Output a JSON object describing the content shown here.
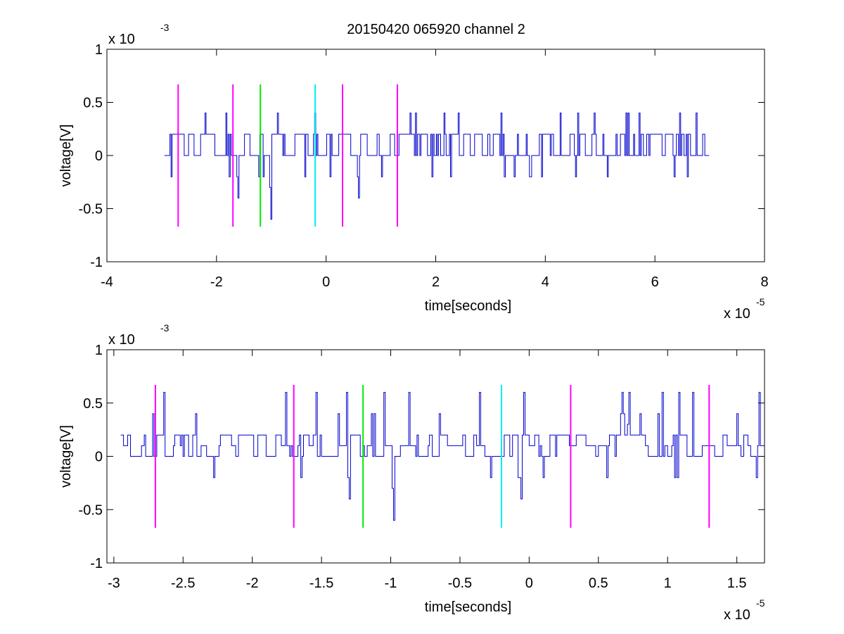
{
  "figure": {
    "title": "20150420 065920 channel 2"
  },
  "chart_data": [
    {
      "type": "line",
      "title": "20150420 065920 channel 2",
      "xlabel": "time[seconds]",
      "ylabel": "voltage[V]",
      "x_exponent_label": "x 10",
      "x_exponent": "-5",
      "y_exponent_label": "x 10",
      "y_exponent": "-3",
      "x_unit_scale": 1e-05,
      "y_unit_scale": 0.001,
      "xlim": [
        -4,
        8
      ],
      "ylim": [
        -1,
        1
      ],
      "xticks": [
        -4,
        -2,
        0,
        2,
        4,
        6,
        8
      ],
      "xtick_labels": [
        "-4",
        "-2",
        "0",
        "2",
        "4",
        "6",
        "8"
      ],
      "yticks": [
        -1,
        -0.5,
        0,
        0.5,
        1
      ],
      "ytick_labels": [
        "-1",
        "-0.5",
        "0",
        "0.5",
        "1"
      ],
      "grid": false,
      "series": [
        {
          "kind": "signal",
          "color": "#0000cc",
          "x_start": -2.95,
          "x_end": 7.0,
          "x_step": 0.02,
          "levels": [
            0.2,
            0.0
          ],
          "spike_levels": [
            0.4,
            -0.2
          ],
          "dips": [
            [
              -1.0,
              -0.6
            ],
            [
              -1.6,
              -0.4
            ],
            [
              0.6,
              -0.4
            ]
          ],
          "seed": 7
        }
      ],
      "markers": [
        {
          "x": -2.7,
          "color": "#ff00ff",
          "y_range": [
            -0.67,
            0.67
          ]
        },
        {
          "x": -1.7,
          "color": "#ff00ff",
          "y_range": [
            -0.67,
            0.67
          ]
        },
        {
          "x": -1.2,
          "color": "#00ee00",
          "y_range": [
            -0.67,
            0.67
          ]
        },
        {
          "x": -0.2,
          "color": "#00eeee",
          "y_range": [
            -0.67,
            0.67
          ]
        },
        {
          "x": 0.3,
          "color": "#ff00ff",
          "y_range": [
            -0.67,
            0.67
          ]
        },
        {
          "x": 1.3,
          "color": "#ff00ff",
          "y_range": [
            -0.67,
            0.67
          ]
        }
      ]
    },
    {
      "type": "line",
      "title": "",
      "xlabel": "time[seconds]",
      "ylabel": "voltage[V]",
      "x_exponent_label": "x 10",
      "x_exponent": "-5",
      "y_exponent_label": "x 10",
      "y_exponent": "-3",
      "x_unit_scale": 1e-05,
      "y_unit_scale": 0.001,
      "xlim": [
        -3.05,
        1.7
      ],
      "ylim": [
        -1,
        1
      ],
      "xticks": [
        -3,
        -2.5,
        -2,
        -1.5,
        -1,
        -0.5,
        0,
        0.5,
        1,
        1.5
      ],
      "xtick_labels": [
        "-3",
        "-2.5",
        "-2",
        "-1.5",
        "-1",
        "-0.5",
        "0",
        "0.5",
        "1",
        "1.5"
      ],
      "yticks": [
        -1,
        -0.5,
        0,
        0.5,
        1
      ],
      "ytick_labels": [
        "-1",
        "-0.5",
        "0",
        "0.5",
        "1"
      ],
      "grid": false,
      "series": [
        {
          "kind": "signal",
          "color": "#0000cc",
          "x_start": -2.95,
          "x_end": 1.7,
          "x_step": 0.01,
          "levels": [
            0.2,
            0.0,
            0.1
          ],
          "spike_levels": [
            0.4,
            -0.2,
            0.6
          ],
          "dips": [
            [
              -1.3,
              -0.4
            ],
            [
              -0.98,
              -0.6
            ],
            [
              -0.06,
              -0.4
            ],
            [
              0.72,
              0.6
            ]
          ],
          "seed": 11
        }
      ],
      "markers": [
        {
          "x": -2.7,
          "color": "#ff00ff",
          "y_range": [
            -0.67,
            0.67
          ]
        },
        {
          "x": -1.7,
          "color": "#ff00ff",
          "y_range": [
            -0.67,
            0.67
          ]
        },
        {
          "x": -1.2,
          "color": "#00ee00",
          "y_range": [
            -0.67,
            0.67
          ]
        },
        {
          "x": -0.2,
          "color": "#00eeee",
          "y_range": [
            -0.67,
            0.67
          ]
        },
        {
          "x": 0.3,
          "color": "#ff00ff",
          "y_range": [
            -0.67,
            0.67
          ]
        },
        {
          "x": 1.3,
          "color": "#ff00ff",
          "y_range": [
            -0.67,
            0.67
          ]
        }
      ]
    }
  ]
}
